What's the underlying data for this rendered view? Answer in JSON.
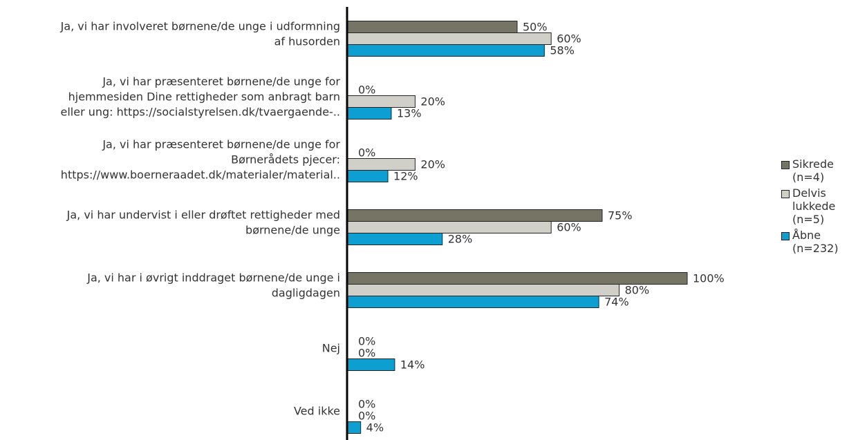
{
  "chart_data": {
    "type": "bar",
    "orientation": "horizontal",
    "categories": [
      [
        "Ja, vi har involveret børnene/de unge i udformning",
        "af husorden"
      ],
      [
        "Ja, vi har præsenteret børnene/de unge for",
        "hjemmesiden Dine rettigheder som anbragt barn",
        "eller ung: https://socialstyrelsen.dk/tvaergaende-.."
      ],
      [
        "Ja, vi har præsenteret børnene/de unge for",
        "Børnerådets pjecer:",
        "https://www.boerneraadet.dk/materialer/material.."
      ],
      [
        "Ja, vi har undervist i eller drøftet rettigheder med",
        "børnene/de unge"
      ],
      [
        "Ja, vi har i øvrigt inddraget børnene/de unge i",
        "dagligdagen"
      ],
      [
        "Nej"
      ],
      [
        "Ved ikke"
      ]
    ],
    "series": [
      {
        "name": "Sikrede (n=4)",
        "color": "#767565",
        "values": [
          50,
          0,
          0,
          75,
          100,
          0,
          0
        ],
        "value_labels": [
          "50%",
          "0%",
          "0%",
          "75%",
          "100%",
          "0%",
          "0%"
        ]
      },
      {
        "name": "Delvis lukkede (n=5)",
        "color": "#d1d0c8",
        "values": [
          60,
          20,
          20,
          60,
          80,
          0,
          0
        ],
        "value_labels": [
          "60%",
          "20%",
          "20%",
          "60%",
          "80%",
          "0%",
          "0%"
        ]
      },
      {
        "name": "Åbne (n=232)",
        "color": "#0d9fd1",
        "values": [
          58,
          13,
          12,
          28,
          74,
          14,
          4
        ],
        "value_labels": [
          "58%",
          "13%",
          "12%",
          "28%",
          "74%",
          "14%",
          "4%"
        ]
      }
    ],
    "xlim": [
      0,
      100
    ],
    "legend": "right"
  }
}
